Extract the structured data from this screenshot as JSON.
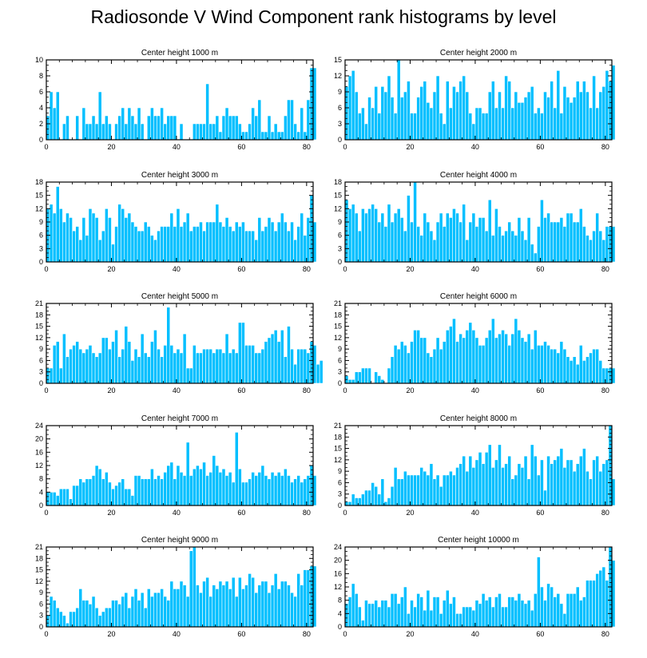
{
  "title": "Radiosonde V Wind Component rank histograms by level",
  "colors": {
    "bar": "#00bfff",
    "bar_edge": "#ffffff",
    "axis": "#000000"
  },
  "chart_data": [
    {
      "type": "bar",
      "title": "Center height 1000 m",
      "xlim": [
        0,
        82
      ],
      "ylim": [
        0,
        10
      ],
      "xticks": [
        0,
        20,
        40,
        60,
        80
      ],
      "yticks": [
        0,
        2,
        4,
        6,
        8,
        10
      ],
      "values": [
        3,
        6,
        4,
        6,
        0,
        2,
        3,
        0,
        0,
        3,
        0,
        4,
        2,
        2,
        3,
        2,
        6,
        2,
        3,
        2,
        0,
        2,
        3,
        4,
        2,
        4,
        3,
        2,
        4,
        2,
        0,
        3,
        4,
        3,
        3,
        4,
        2,
        3,
        3,
        3,
        0,
        2,
        0,
        0,
        0,
        2,
        2,
        2,
        2,
        7,
        2,
        2,
        3,
        1,
        3,
        4,
        3,
        3,
        3,
        2,
        1,
        1,
        2,
        4,
        3,
        5,
        1,
        1,
        3,
        1,
        2,
        1,
        1,
        3,
        5,
        5,
        2,
        1,
        4,
        1,
        5,
        9,
        9
      ],
      "xlabel": "",
      "ylabel": ""
    },
    {
      "type": "bar",
      "title": "Center height 2000 m",
      "xlim": [
        0,
        82
      ],
      "ylim": [
        0,
        15
      ],
      "xticks": [
        0,
        20,
        40,
        60,
        80
      ],
      "yticks": [
        0,
        3,
        6,
        9,
        12,
        15
      ],
      "values": [
        10,
        12,
        13,
        9,
        5,
        6,
        3,
        8,
        6,
        10,
        5,
        10,
        9,
        12,
        8,
        5,
        15,
        8,
        9,
        11,
        5,
        5,
        8,
        10,
        11,
        7,
        6,
        9,
        12,
        5,
        3,
        11,
        6,
        10,
        9,
        11,
        12,
        9,
        5,
        3,
        6,
        6,
        5,
        5,
        9,
        11,
        6,
        9,
        6,
        12,
        11,
        6,
        9,
        7,
        7,
        8,
        9,
        10,
        5,
        6,
        5,
        9,
        8,
        11,
        6,
        13,
        5,
        10,
        8,
        7,
        8,
        11,
        9,
        11,
        9,
        6,
        12,
        6,
        9,
        10,
        13,
        11,
        14
      ],
      "xlabel": "",
      "ylabel": ""
    },
    {
      "type": "bar",
      "title": "Center height 3000 m",
      "xlim": [
        0,
        82
      ],
      "ylim": [
        0,
        18
      ],
      "xticks": [
        0,
        20,
        40,
        60,
        80
      ],
      "yticks": [
        0,
        3,
        6,
        9,
        12,
        15,
        18
      ],
      "values": [
        12,
        13,
        11,
        17,
        12,
        9,
        11,
        10,
        7,
        8,
        5,
        10,
        6,
        12,
        11,
        10,
        5,
        7,
        12,
        10,
        4,
        8,
        13,
        12,
        10,
        11,
        9,
        8,
        7,
        7,
        9,
        8,
        6,
        5,
        7,
        8,
        8,
        8,
        11,
        8,
        12,
        8,
        9,
        11,
        7,
        8,
        8,
        9,
        7,
        9,
        9,
        9,
        13,
        9,
        8,
        10,
        8,
        7,
        9,
        8,
        9,
        7,
        7,
        7,
        5,
        10,
        7,
        8,
        10,
        9,
        7,
        9,
        11,
        9,
        7,
        9,
        5,
        8,
        11,
        6,
        10,
        15,
        9
      ],
      "xlabel": "",
      "ylabel": ""
    },
    {
      "type": "bar",
      "title": "Center height 4000 m",
      "xlim": [
        0,
        82
      ],
      "ylim": [
        0,
        18
      ],
      "xticks": [
        0,
        20,
        40,
        60,
        80
      ],
      "yticks": [
        0,
        3,
        6,
        9,
        12,
        15,
        18
      ],
      "values": [
        14,
        12,
        13,
        11,
        7,
        12,
        11,
        12,
        13,
        12,
        9,
        11,
        8,
        13,
        9,
        11,
        12,
        10,
        7,
        15,
        9,
        18,
        8,
        6,
        11,
        9,
        7,
        5,
        9,
        11,
        8,
        11,
        10,
        12,
        11,
        9,
        13,
        5,
        9,
        11,
        8,
        10,
        10,
        7,
        14,
        6,
        12,
        8,
        6,
        7,
        9,
        7,
        6,
        10,
        7,
        5,
        10,
        4,
        2,
        8,
        14,
        10,
        11,
        9,
        9,
        9,
        10,
        8,
        11,
        11,
        9,
        9,
        12,
        8,
        6,
        5,
        7,
        11,
        7,
        5,
        8,
        8,
        8
      ],
      "xlabel": "",
      "ylabel": ""
    },
    {
      "type": "bar",
      "title": "Center height 5000 m",
      "xlim": [
        0,
        82
      ],
      "ylim": [
        0,
        21
      ],
      "xticks": [
        0,
        20,
        40,
        60,
        80
      ],
      "yticks": [
        0,
        3,
        6,
        9,
        12,
        15,
        18,
        21
      ],
      "values": [
        4,
        4,
        10,
        11,
        4,
        13,
        7,
        9,
        10,
        11,
        9,
        8,
        9,
        10,
        8,
        7,
        8,
        12,
        12,
        9,
        11,
        14,
        7,
        9,
        15,
        11,
        6,
        9,
        7,
        13,
        8,
        7,
        11,
        14,
        9,
        7,
        10,
        20,
        10,
        8,
        9,
        8,
        13,
        4,
        4,
        10,
        8,
        8,
        9,
        9,
        9,
        8,
        9,
        9,
        8,
        13,
        8,
        9,
        8,
        16,
        16,
        10,
        10,
        10,
        8,
        8,
        9,
        11,
        12,
        13,
        14,
        11,
        14,
        7,
        15,
        9,
        5,
        9,
        9,
        9,
        8,
        11,
        10,
        5,
        6
      ],
      "xlabel": "",
      "ylabel": ""
    },
    {
      "type": "bar",
      "title": "Center height 6000 m",
      "xlim": [
        0,
        82
      ],
      "ylim": [
        0,
        21
      ],
      "xticks": [
        0,
        20,
        40,
        60,
        80
      ],
      "yticks": [
        0,
        3,
        6,
        9,
        12,
        15,
        18,
        21
      ],
      "values": [
        2,
        1,
        1,
        3,
        3,
        4,
        4,
        4,
        0,
        3,
        2,
        1,
        0,
        4,
        7,
        10,
        9,
        11,
        10,
        8,
        11,
        14,
        14,
        12,
        12,
        8,
        7,
        9,
        12,
        9,
        11,
        14,
        15,
        17,
        11,
        13,
        12,
        14,
        16,
        14,
        12,
        10,
        10,
        12,
        14,
        17,
        12,
        13,
        14,
        13,
        10,
        13,
        17,
        14,
        12,
        11,
        13,
        9,
        14,
        10,
        10,
        11,
        10,
        9,
        9,
        8,
        11,
        9,
        7,
        6,
        7,
        5,
        10,
        6,
        7,
        8,
        9,
        9,
        6,
        4,
        4,
        4,
        4
      ],
      "xlabel": "",
      "ylabel": ""
    },
    {
      "type": "bar",
      "title": "Center height 7000 m",
      "xlim": [
        0,
        82
      ],
      "ylim": [
        0,
        24
      ],
      "xticks": [
        0,
        20,
        40,
        60,
        80
      ],
      "yticks": [
        0,
        4,
        8,
        12,
        16,
        20,
        24
      ],
      "values": [
        4,
        4,
        4,
        3,
        5,
        5,
        5,
        2,
        6,
        6,
        8,
        7,
        8,
        8,
        9,
        12,
        11,
        8,
        10,
        7,
        5,
        6,
        7,
        8,
        5,
        5,
        3,
        9,
        9,
        8,
        8,
        8,
        11,
        8,
        9,
        8,
        10,
        12,
        13,
        8,
        12,
        10,
        9,
        19,
        9,
        11,
        12,
        11,
        13,
        9,
        10,
        15,
        12,
        10,
        11,
        9,
        10,
        7,
        22,
        11,
        7,
        7,
        8,
        10,
        9,
        10,
        12,
        9,
        8,
        10,
        9,
        10,
        9,
        11,
        9,
        7,
        8,
        9,
        7,
        8,
        9,
        12,
        9
      ],
      "xlabel": "",
      "ylabel": ""
    },
    {
      "type": "bar",
      "title": "Center height 8000 m",
      "xlim": [
        0,
        82
      ],
      "ylim": [
        0,
        21
      ],
      "xticks": [
        0,
        20,
        40,
        60,
        80
      ],
      "yticks": [
        0,
        3,
        6,
        9,
        12,
        15,
        18,
        21
      ],
      "values": [
        1,
        1,
        3,
        2,
        2,
        3,
        4,
        4,
        6,
        5,
        3,
        7,
        1,
        2,
        5,
        10,
        7,
        7,
        9,
        8,
        8,
        8,
        8,
        10,
        9,
        8,
        11,
        7,
        8,
        5,
        8,
        8,
        9,
        8,
        10,
        11,
        13,
        9,
        13,
        10,
        12,
        14,
        11,
        14,
        16,
        10,
        12,
        16,
        10,
        11,
        13,
        7,
        8,
        11,
        10,
        13,
        7,
        16,
        13,
        8,
        12,
        4,
        13,
        11,
        12,
        13,
        15,
        10,
        12,
        12,
        9,
        11,
        13,
        15,
        9,
        7,
        12,
        13,
        9,
        11,
        12,
        22,
        7
      ],
      "xlabel": "",
      "ylabel": ""
    },
    {
      "type": "bar",
      "title": "Center height 9000 m",
      "xlim": [
        0,
        82
      ],
      "ylim": [
        0,
        21
      ],
      "xticks": [
        0,
        20,
        40,
        60,
        80
      ],
      "yticks": [
        0,
        3,
        6,
        9,
        12,
        15,
        18,
        21
      ],
      "values": [
        3,
        8,
        7,
        5,
        4,
        3,
        1,
        4,
        4,
        5,
        10,
        7,
        7,
        6,
        8,
        5,
        3,
        4,
        5,
        5,
        7,
        7,
        6,
        8,
        9,
        5,
        8,
        10,
        7,
        9,
        5,
        10,
        8,
        9,
        9,
        10,
        8,
        7,
        12,
        10,
        10,
        12,
        11,
        8,
        20,
        21,
        11,
        9,
        12,
        13,
        8,
        11,
        10,
        12,
        11,
        12,
        10,
        13,
        8,
        13,
        10,
        11,
        14,
        13,
        9,
        11,
        12,
        12,
        9,
        11,
        14,
        10,
        12,
        12,
        11,
        9,
        8,
        14,
        11,
        15,
        15,
        16,
        16
      ],
      "xlabel": "",
      "ylabel": ""
    },
    {
      "type": "bar",
      "title": "Center height 10000 m",
      "xlim": [
        0,
        82
      ],
      "ylim": [
        0,
        24
      ],
      "xticks": [
        0,
        20,
        40,
        60,
        80
      ],
      "yticks": [
        0,
        4,
        8,
        12,
        16,
        20,
        24
      ],
      "values": [
        7,
        9,
        13,
        10,
        6,
        2,
        8,
        7,
        7,
        8,
        6,
        8,
        8,
        6,
        10,
        10,
        7,
        9,
        12,
        4,
        8,
        6,
        10,
        9,
        5,
        11,
        5,
        9,
        9,
        4,
        8,
        11,
        7,
        9,
        4,
        4,
        6,
        6,
        6,
        5,
        8,
        7,
        10,
        8,
        9,
        6,
        9,
        10,
        6,
        6,
        9,
        9,
        8,
        10,
        8,
        7,
        8,
        5,
        10,
        21,
        12,
        8,
        13,
        12,
        9,
        10,
        7,
        4,
        10,
        10,
        10,
        12,
        8,
        9,
        14,
        14,
        14,
        16,
        17,
        18,
        14,
        24,
        20
      ],
      "xlabel": "",
      "ylabel": ""
    }
  ]
}
